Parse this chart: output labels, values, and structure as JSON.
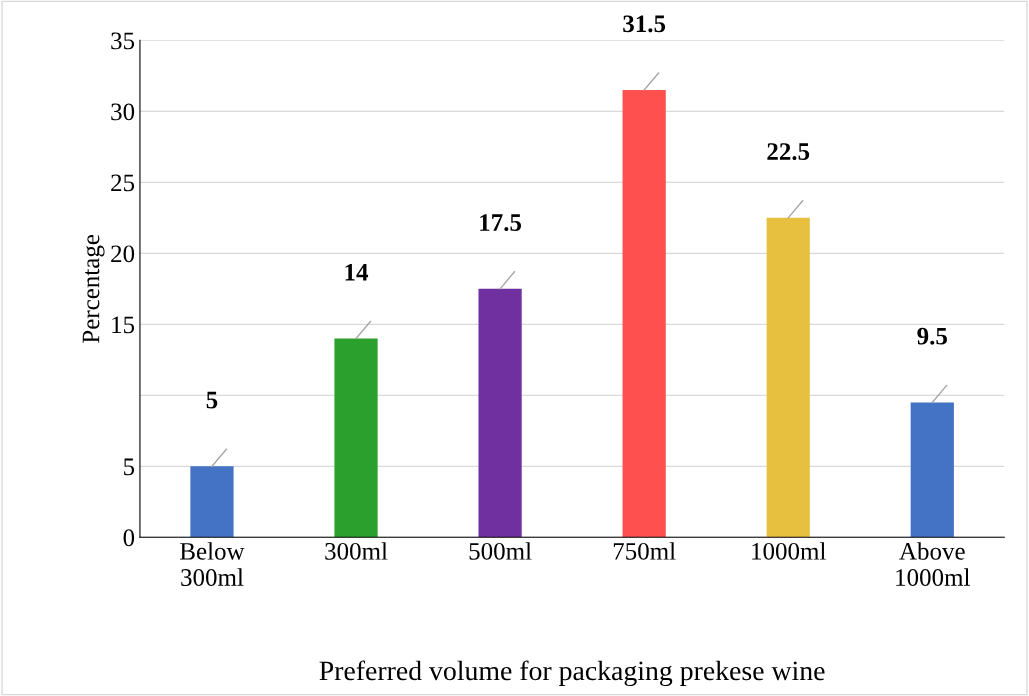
{
  "chart_data": {
    "type": "bar",
    "xlabel": "Preferred volume for packaging prekese wine",
    "ylabel": "Percentage",
    "categories": [
      "Below\n300ml",
      "300ml",
      "500ml",
      "750ml",
      "1000ml",
      "Above\n1000ml"
    ],
    "values": [
      5,
      14,
      17.5,
      31.5,
      22.5,
      9.5
    ],
    "colors": [
      "#4472c4",
      "#2ca02c",
      "#7030a0",
      "#ff5050",
      "#e8c040",
      "#4472c4"
    ],
    "ylim": [
      0,
      35
    ],
    "yticks": [
      0,
      5,
      {
        "value": 10,
        "label": null
      },
      15,
      20,
      25,
      30,
      35
    ],
    "grid": "y",
    "data_labels": true
  }
}
